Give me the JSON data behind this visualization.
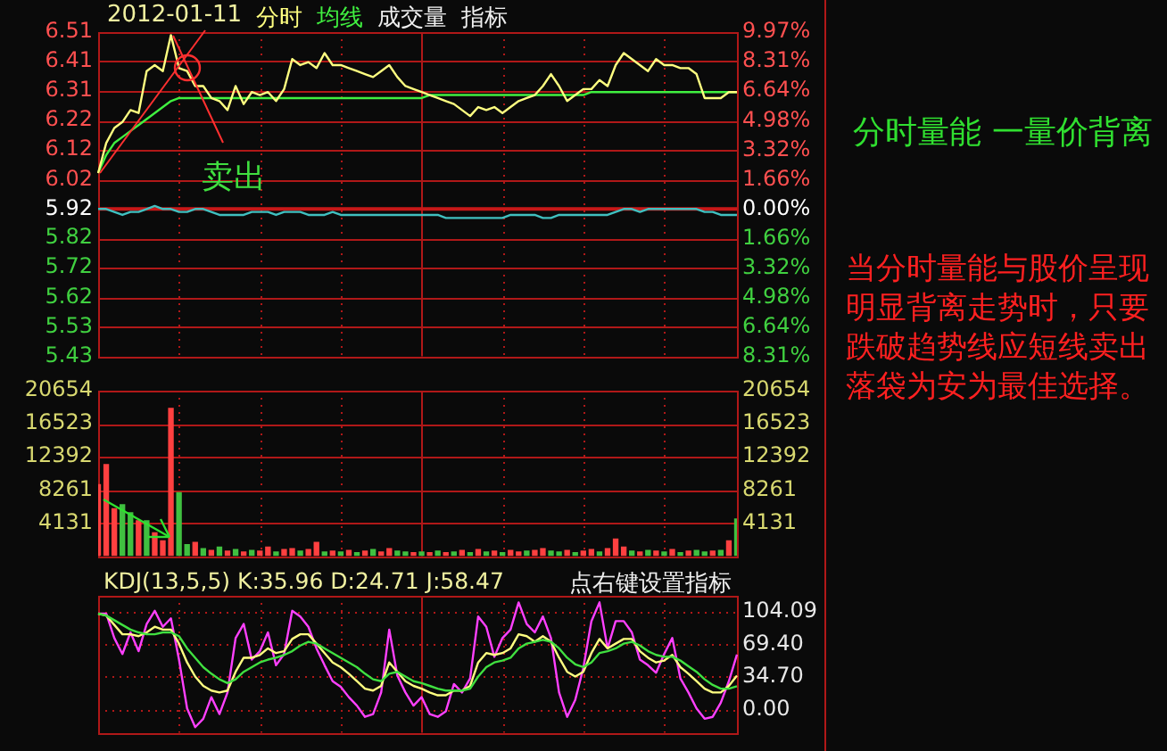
{
  "chart_data": [
    {
      "type": "line",
      "title": "2012-01-11",
      "legend": "top left",
      "grid": true,
      "tick_labels": "y",
      "categories": [
        null,
        null,
        null,
        null,
        null,
        null,
        null,
        null,
        null,
        null,
        null,
        null,
        null,
        null,
        null,
        null,
        null,
        null,
        null,
        null,
        null,
        null,
        null,
        null,
        null,
        null,
        null,
        null,
        null,
        null,
        null,
        null,
        null,
        null,
        null,
        null,
        null,
        null,
        null,
        null,
        null,
        null,
        null,
        null,
        null,
        null,
        null,
        null,
        null,
        null,
        null,
        null,
        null,
        null,
        null,
        null,
        null,
        null,
        null,
        null,
        null,
        null,
        null,
        null,
        null,
        null,
        null,
        null,
        null,
        null,
        null,
        null,
        null,
        null,
        null,
        null,
        null,
        null,
        null,
        null
      ],
      "ylim": [
        5.428,
        6.51
      ],
      "yticks": [
        6.51,
        {
          "value": 6.412,
          "label": "6.41"
        },
        {
          "value": 6.313,
          "label": "6.31"
        },
        {
          "value": 6.215,
          "label": "6.22"
        },
        {
          "value": 6.117,
          "label": "6.12"
        },
        {
          "value": 6.018,
          "label": "6.02"
        },
        5.92,
        {
          "value": 5.822,
          "label": "5.82"
        },
        {
          "value": 5.724,
          "label": "5.72"
        },
        {
          "value": 5.625,
          "label": "5.62"
        },
        {
          "value": 5.527,
          "label": "5.53"
        },
        {
          "value": 5.428,
          "label": "5.43"
        }
      ],
      "y2lim": [
        -8.31,
        9.97
      ],
      "y2ticks": [
        {
          "value": 9.97,
          "label": "9.97%"
        },
        {
          "value": 8.31,
          "label": "8.31%"
        },
        {
          "value": 6.64,
          "label": "6.64%"
        },
        {
          "value": 4.98,
          "label": "4.98%"
        },
        {
          "value": 3.32,
          "label": "3.32%"
        },
        {
          "value": 1.66,
          "label": "1.66%"
        },
        {
          "value": 0,
          "label": "0.00%"
        },
        {
          "value": -1.66,
          "label": "1.66%"
        },
        {
          "value": -3.32,
          "label": "3.32%"
        },
        {
          "value": -4.98,
          "label": "4.98%"
        },
        {
          "value": -6.64,
          "label": "6.64%"
        },
        {
          "value": -8.31,
          "label": "8.31%"
        }
      ],
      "series": [
        {
          "name": "分时",
          "color": "#ffff80",
          "values": [
            6.04,
            6.14,
            6.19,
            6.21,
            6.25,
            6.24,
            6.38,
            6.4,
            6.38,
            6.5,
            6.39,
            6.38,
            6.33,
            6.33,
            6.29,
            6.28,
            6.25,
            6.33,
            6.27,
            6.31,
            6.3,
            6.31,
            6.28,
            6.32,
            6.42,
            6.4,
            6.41,
            6.39,
            6.44,
            6.4,
            6.4,
            6.39,
            6.38,
            6.37,
            6.36,
            6.38,
            6.4,
            6.36,
            6.33,
            6.32,
            6.31,
            6.3,
            6.29,
            6.28,
            6.27,
            6.25,
            6.23,
            6.26,
            6.25,
            6.26,
            6.24,
            6.26,
            6.28,
            6.29,
            6.3,
            6.33,
            6.37,
            6.33,
            6.28,
            6.3,
            6.32,
            6.32,
            6.35,
            6.33,
            6.4,
            6.44,
            6.42,
            6.4,
            6.38,
            6.42,
            6.4,
            6.4,
            6.39,
            6.39,
            6.37,
            6.29,
            6.29,
            6.29,
            6.31,
            6.31
          ]
        },
        {
          "name": "均线",
          "color": "#40f040",
          "values": [
            6.04,
            6.1,
            6.14,
            6.16,
            6.18,
            6.2,
            6.22,
            6.24,
            6.26,
            6.28,
            6.29,
            6.29,
            6.29,
            6.29,
            6.29,
            6.29,
            6.29,
            6.29,
            6.29,
            6.29,
            6.29,
            6.29,
            6.29,
            6.29,
            6.29,
            6.29,
            6.29,
            6.29,
            6.29,
            6.29,
            6.29,
            6.29,
            6.29,
            6.29,
            6.29,
            6.29,
            6.29,
            6.29,
            6.29,
            6.29,
            6.29,
            6.3,
            6.3,
            6.3,
            6.3,
            6.3,
            6.3,
            6.3,
            6.3,
            6.3,
            6.3,
            6.3,
            6.3,
            6.3,
            6.3,
            6.3,
            6.3,
            6.3,
            6.3,
            6.3,
            6.3,
            6.31,
            6.31,
            6.31,
            6.31,
            6.31,
            6.31,
            6.31,
            6.31,
            6.31,
            6.31,
            6.31,
            6.31,
            6.31,
            6.31,
            6.31,
            6.31,
            6.31,
            6.31,
            6.31
          ]
        },
        {
          "color": "#40c0c0",
          "values": [
            5.92,
            5.92,
            5.91,
            5.9,
            5.91,
            5.91,
            5.92,
            5.93,
            5.92,
            5.92,
            5.91,
            5.91,
            5.92,
            5.92,
            5.91,
            5.9,
            5.9,
            5.9,
            5.9,
            5.91,
            5.91,
            5.91,
            5.9,
            5.91,
            5.91,
            5.91,
            5.9,
            5.9,
            5.9,
            5.91,
            5.9,
            5.9,
            5.9,
            5.9,
            5.9,
            5.9,
            5.9,
            5.9,
            5.9,
            5.9,
            5.9,
            5.9,
            5.9,
            5.89,
            5.89,
            5.89,
            5.89,
            5.89,
            5.89,
            5.89,
            5.89,
            5.9,
            5.9,
            5.9,
            5.9,
            5.89,
            5.89,
            5.9,
            5.9,
            5.9,
            5.9,
            5.9,
            5.9,
            5.9,
            5.91,
            5.92,
            5.92,
            5.91,
            5.92,
            5.92,
            5.92,
            5.92,
            5.92,
            5.92,
            5.92,
            5.91,
            5.91,
            5.9,
            5.9,
            5.9
          ]
        }
      ],
      "ref_lines": [
        {
          "axis": "y",
          "value": 5.92,
          "color": "#c81818"
        }
      ],
      "annotations": [
        "卖出",
        "成交量",
        "指标",
        "分时量能 一量价背离",
        "当分时量能与股价呈现明显背离走势时，只要跌破趋势线应短线卖出落袋为安为最佳选择。"
      ]
    },
    {
      "type": "bar",
      "grid": true,
      "tick_labels": "y",
      "categories": [
        null,
        null,
        null,
        null,
        null,
        null,
        null,
        null,
        null,
        null,
        null,
        null,
        null,
        null,
        null,
        null,
        null,
        null,
        null,
        null,
        null,
        null,
        null,
        null,
        null,
        null,
        null,
        null,
        null,
        null,
        null,
        null,
        null,
        null,
        null,
        null,
        null,
        null,
        null,
        null,
        null,
        null,
        null,
        null,
        null,
        null,
        null,
        null,
        null,
        null,
        null,
        null,
        null,
        null,
        null,
        null,
        null,
        null,
        null,
        null,
        null,
        null,
        null,
        null,
        null,
        null,
        null,
        null,
        null,
        null,
        null,
        null,
        null,
        null,
        null,
        null,
        null,
        null,
        null,
        null
      ],
      "ylim": [
        0,
        20654
      ],
      "yticks": [
        4131,
        8261,
        12392,
        16523,
        20654
      ],
      "y2lim": [
        0,
        20654
      ],
      "y2ticks": [
        4131,
        8261,
        12392,
        16523,
        20654
      ],
      "values": [
        9000,
        11500,
        6000,
        6500,
        5500,
        4500,
        4500,
        3000,
        2000,
        18500,
        8000,
        1500,
        1800,
        1000,
        800,
        1200,
        700,
        900,
        600,
        800,
        700,
        1200,
        600,
        900,
        1000,
        700,
        900,
        1800,
        600,
        700,
        600,
        800,
        500,
        700,
        900,
        600,
        1000,
        700,
        600,
        500,
        600,
        500,
        700,
        500,
        600,
        800,
        500,
        900,
        600,
        700,
        500,
        800,
        600,
        700,
        800,
        1000,
        700,
        600,
        800,
        500,
        700,
        900,
        600,
        1000,
        2200,
        1200,
        700,
        600,
        800,
        700,
        600,
        900,
        500,
        700,
        800,
        600,
        700,
        800,
        2000,
        4700
      ],
      "colors": [
        "#ff4040",
        "#ff4040",
        "#ff4040",
        "#40c040",
        "#40c040",
        "#ff4040",
        "#40c040",
        "#ff4040",
        "#ff4040",
        "#ff4040",
        "#40c040",
        "#40c040",
        "#ff4040",
        "#40c040",
        "#ff4040",
        "#40c040",
        "#ff4040",
        "#40c040",
        "#ff4040",
        "#40c040",
        "#ff4040",
        "#ff4040",
        "#40c040",
        "#ff4040",
        "#ff4040",
        "#40c040",
        "#ff4040",
        "#ff4040",
        "#40c040",
        "#ff4040",
        "#40c040",
        "#ff4040",
        "#40c040",
        "#ff4040",
        "#40c040",
        "#ff4040",
        "#ff4040",
        "#40c040",
        "#40c040",
        "#ff4040",
        "#40c040",
        "#ff4040",
        "#40c040",
        "#ff4040",
        "#40c040",
        "#ff4040",
        "#40c040",
        "#ff4040",
        "#40c040",
        "#ff4040",
        "#40c040",
        "#ff4040",
        "#ff4040",
        "#40c040",
        "#ff4040",
        "#ff4040",
        "#40c040",
        "#40c040",
        "#ff4040",
        "#40c040",
        "#ff4040",
        "#ff4040",
        "#40c040",
        "#ff4040",
        "#ff4040",
        "#ff4040",
        "#40c040",
        "#ff4040",
        "#40c040",
        "#ff4040",
        "#40c040",
        "#ff4040",
        "#40c040",
        "#ff4040",
        "#40c040",
        "#40c040",
        "#ff4040",
        "#40c040",
        "#ff4040",
        "#40c040"
      ]
    },
    {
      "type": "line",
      "title": "KDJ(13,5,5)  K:35.96  D:24.71  J:58.47",
      "grid": true,
      "tick_labels": "y",
      "categories": [
        null,
        null,
        null,
        null,
        null,
        null,
        null,
        null,
        null,
        null,
        null,
        null,
        null,
        null,
        null,
        null,
        null,
        null,
        null,
        null,
        null,
        null,
        null,
        null,
        null,
        null,
        null,
        null,
        null,
        null,
        null,
        null,
        null,
        null,
        null,
        null,
        null,
        null,
        null,
        null,
        null,
        null,
        null,
        null,
        null,
        null,
        null,
        null,
        null,
        null,
        null,
        null,
        null,
        null,
        null,
        null,
        null,
        null,
        null,
        null,
        null,
        null,
        null,
        null,
        null,
        null,
        null,
        null,
        null,
        null,
        null,
        null,
        null,
        null,
        null,
        null,
        null,
        null,
        null,
        null
      ],
      "ylim": [
        -25,
        121
      ],
      "yticks": [
        {
          "value": 0,
          "label": "0.00"
        },
        {
          "value": 34.7,
          "label": "34.70"
        },
        {
          "value": 69.4,
          "label": "69.40"
        },
        104.09
      ],
      "series": [
        {
          "color": "#40e040",
          "values": [
            102,
            100,
            95,
            90,
            85,
            82,
            80,
            80,
            82,
            82,
            78,
            65,
            55,
            45,
            38,
            32,
            28,
            32,
            40,
            45,
            50,
            53,
            55,
            58,
            62,
            68,
            72,
            70,
            65,
            60,
            55,
            50,
            45,
            38,
            32,
            30,
            38,
            40,
            35,
            30,
            28,
            25,
            22,
            20,
            20,
            20,
            22,
            35,
            45,
            50,
            52,
            55,
            65,
            70,
            72,
            74,
            72,
            65,
            55,
            48,
            45,
            50,
            60,
            62,
            65,
            70,
            72,
            68,
            62,
            58,
            56,
            56,
            52,
            46,
            40,
            32,
            26,
            22,
            22,
            24.71
          ]
        },
        {
          "color": "#ffff80",
          "values": [
            102,
            100,
            90,
            80,
            80,
            78,
            82,
            88,
            85,
            85,
            70,
            50,
            35,
            25,
            20,
            18,
            20,
            40,
            55,
            55,
            58,
            65,
            60,
            62,
            75,
            80,
            80,
            70,
            60,
            50,
            45,
            38,
            30,
            22,
            20,
            25,
            50,
            40,
            30,
            25,
            22,
            18,
            15,
            15,
            20,
            20,
            25,
            50,
            60,
            58,
            60,
            65,
            80,
            78,
            72,
            78,
            72,
            55,
            40,
            35,
            40,
            60,
            75,
            65,
            70,
            75,
            75,
            62,
            55,
            50,
            52,
            58,
            45,
            38,
            30,
            22,
            18,
            18,
            25,
            35.96
          ]
        },
        {
          "color": "#ff40ff",
          "values": [
            102,
            102,
            76,
            59,
            82,
            62,
            91,
            105,
            88,
            97,
            53,
            1,
            -19,
            -10,
            13,
            -5,
            18,
            76,
            91,
            53,
            62,
            82,
            47,
            59,
            105,
            99,
            88,
            65,
            47,
            30,
            24,
            13,
            4,
            -8,
            -5,
            18,
            85,
            36,
            18,
            4,
            13,
            -5,
            -8,
            -2,
            27,
            18,
            33,
            99,
            88,
            56,
            76,
            85,
            114,
            91,
            82,
            99,
            76,
            18,
            -8,
            10,
            44,
            94,
            114,
            65,
            94,
            94,
            82,
            53,
            47,
            39,
            59,
            76,
            33,
            18,
            1,
            -10,
            -8,
            7,
            30,
            58.47
          ]
        }
      ],
      "annotations": [
        "点右键设置指标"
      ]
    }
  ]
}
